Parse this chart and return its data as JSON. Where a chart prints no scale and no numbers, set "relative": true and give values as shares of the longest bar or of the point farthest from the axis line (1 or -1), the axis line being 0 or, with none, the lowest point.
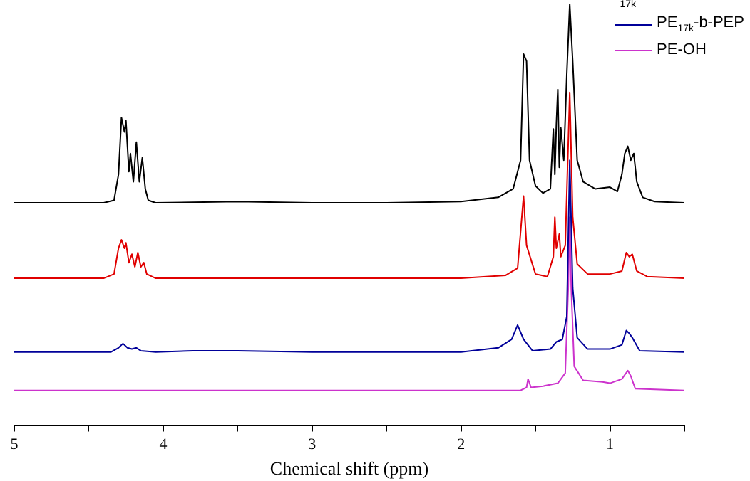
{
  "chart_data": {
    "type": "line",
    "relative": true,
    "xlabel": "Chemical shift (ppm)",
    "xlim": [
      5,
      0.5
    ],
    "xticks": [
      5,
      {
        "value": 4.5,
        "label": null
      },
      4,
      {
        "value": 3.5,
        "label": null
      },
      3,
      {
        "value": 2.5,
        "label": null
      },
      2,
      {
        "value": 1.5,
        "label": null
      },
      1,
      {
        "value": 0.5,
        "label": null
      }
    ],
    "legend": "top right",
    "annotations": [
      "17k"
    ],
    "series": [
      {
        "color": "#000000",
        "x": [
          5,
          4.4,
          4.33,
          4.3,
          4.28,
          4.26,
          4.25,
          4.23,
          4.22,
          4.2,
          4.18,
          4.16,
          4.14,
          4.12,
          4.1,
          4.05,
          3.5,
          3,
          2.5,
          2,
          1.75,
          1.65,
          1.6,
          1.58,
          1.56,
          1.54,
          1.5,
          1.45,
          1.4,
          1.38,
          1.37,
          1.36,
          1.35,
          1.34,
          1.33,
          1.31,
          1.29,
          1.27,
          1.25,
          1.22,
          1.18,
          1.1,
          1,
          0.95,
          0.92,
          0.9,
          0.88,
          0.86,
          0.84,
          0.82,
          0.78,
          0.7,
          0.5
        ],
        "values": [
          0.529,
          0.529,
          0.535,
          0.596,
          0.731,
          0.697,
          0.724,
          0.603,
          0.646,
          0.579,
          0.673,
          0.579,
          0.636,
          0.562,
          0.535,
          0.529,
          0.532,
          0.529,
          0.529,
          0.532,
          0.542,
          0.562,
          0.63,
          0.882,
          0.865,
          0.63,
          0.569,
          0.552,
          0.562,
          0.704,
          0.596,
          0.714,
          0.798,
          0.613,
          0.707,
          0.63,
          0.832,
          1,
          0.865,
          0.63,
          0.579,
          0.562,
          0.566,
          0.556,
          0.596,
          0.646,
          0.663,
          0.63,
          0.646,
          0.579,
          0.542,
          0.532,
          0.529
        ]
      },
      {
        "color": "#e00000",
        "x": [
          5,
          4.4,
          4.33,
          4.3,
          4.28,
          4.26,
          4.25,
          4.23,
          4.21,
          4.19,
          4.17,
          4.15,
          4.13,
          4.11,
          4.05,
          3.5,
          3,
          2.5,
          2,
          1.7,
          1.62,
          1.58,
          1.56,
          1.5,
          1.42,
          1.38,
          1.37,
          1.36,
          1.34,
          1.33,
          1.3,
          1.27,
          1.25,
          1.22,
          1.15,
          1,
          0.92,
          0.89,
          0.87,
          0.85,
          0.82,
          0.75,
          0.5
        ],
        "values": [
          0.35,
          0.35,
          0.36,
          0.421,
          0.441,
          0.421,
          0.434,
          0.387,
          0.407,
          0.377,
          0.411,
          0.377,
          0.387,
          0.36,
          0.35,
          0.35,
          0.35,
          0.35,
          0.35,
          0.357,
          0.374,
          0.545,
          0.428,
          0.36,
          0.354,
          0.401,
          0.495,
          0.421,
          0.455,
          0.401,
          0.428,
          0.791,
          0.495,
          0.384,
          0.36,
          0.36,
          0.367,
          0.411,
          0.401,
          0.407,
          0.367,
          0.354,
          0.35
        ]
      },
      {
        "name": "PE$_{17k}$-b-PEP",
        "color": "#000099",
        "x": [
          5,
          4.35,
          4.3,
          4.27,
          4.24,
          4.21,
          4.18,
          4.15,
          4.05,
          3.8,
          3.5,
          3,
          2.5,
          2,
          1.75,
          1.66,
          1.62,
          1.58,
          1.52,
          1.4,
          1.36,
          1.32,
          1.29,
          1.27,
          1.25,
          1.22,
          1.15,
          1,
          0.92,
          0.89,
          0.87,
          0.85,
          0.8,
          0.5
        ],
        "values": [
          0.175,
          0.175,
          0.185,
          0.195,
          0.185,
          0.182,
          0.185,
          0.178,
          0.175,
          0.178,
          0.178,
          0.175,
          0.175,
          0.175,
          0.185,
          0.205,
          0.239,
          0.205,
          0.178,
          0.182,
          0.199,
          0.205,
          0.259,
          0.63,
          0.327,
          0.209,
          0.182,
          0.182,
          0.192,
          0.226,
          0.219,
          0.209,
          0.178,
          0.175
        ]
      },
      {
        "name": "PE-OH",
        "color": "#cc33cc",
        "x": [
          5,
          2,
          1.6,
          1.56,
          1.55,
          1.53,
          1.45,
          1.35,
          1.3,
          1.28,
          1.27,
          1.26,
          1.24,
          1.18,
          1.05,
          1,
          0.92,
          0.88,
          0.86,
          0.83,
          0.5
        ],
        "values": [
          0.084,
          0.084,
          0.084,
          0.091,
          0.111,
          0.091,
          0.094,
          0.101,
          0.125,
          0.327,
          0.495,
          0.327,
          0.141,
          0.108,
          0.104,
          0.101,
          0.111,
          0.131,
          0.118,
          0.088,
          0.084
        ]
      }
    ]
  }
}
